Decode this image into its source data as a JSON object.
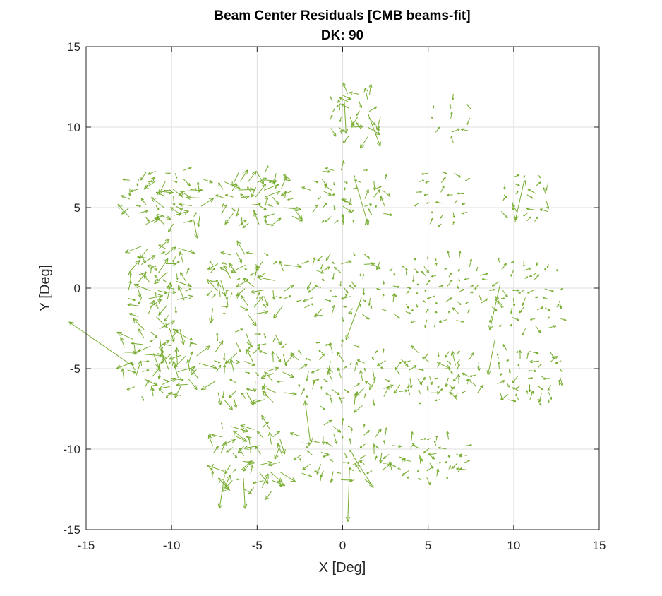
{
  "chart_data": {
    "type": "quiver",
    "title": "Beam Center Residuals [CMB beams-fit]",
    "subtitle": "DK: 90",
    "xlabel": "X [Deg]",
    "ylabel": "Y [Deg]",
    "xlim": [
      -15,
      15
    ],
    "ylim": [
      -15,
      15
    ],
    "xticks": [
      -15,
      -10,
      -5,
      0,
      5,
      10,
      15
    ],
    "yticks": [
      -15,
      -10,
      -5,
      0,
      5,
      10,
      15
    ],
    "grid": true,
    "arrow_color": "#77ac30",
    "tiles": [
      {
        "center": [
          -10.4,
          5.6
        ],
        "half_size": [
          2.1,
          1.6
        ],
        "rows": 7,
        "cols": 9,
        "mean_length": 0.75,
        "seed": 11
      },
      {
        "center": [
          -5.0,
          5.6
        ],
        "half_size": [
          2.0,
          1.6
        ],
        "rows": 7,
        "cols": 9,
        "mean_length": 0.7,
        "seed": 12
      },
      {
        "center": [
          0.3,
          5.6
        ],
        "half_size": [
          2.1,
          1.6
        ],
        "rows": 7,
        "cols": 8,
        "mean_length": 0.45,
        "seed": 13
      },
      {
        "center": [
          5.8,
          5.6
        ],
        "half_size": [
          1.4,
          1.6
        ],
        "rows": 6,
        "cols": 5,
        "mean_length": 0.35,
        "seed": 14
      },
      {
        "center": [
          10.7,
          5.6
        ],
        "half_size": [
          1.3,
          1.4
        ],
        "rows": 6,
        "cols": 5,
        "mean_length": 0.4,
        "seed": 15
      },
      {
        "center": [
          0.7,
          10.8
        ],
        "half_size": [
          1.4,
          1.3
        ],
        "rows": 6,
        "cols": 6,
        "mean_length": 0.6,
        "seed": 16
      },
      {
        "center": [
          6.4,
          10.5
        ],
        "half_size": [
          1.0,
          1.5
        ],
        "rows": 5,
        "cols": 3,
        "mean_length": 0.4,
        "seed": 17
      },
      {
        "center": [
          -10.8,
          0.4
        ],
        "half_size": [
          1.6,
          2.1
        ],
        "rows": 9,
        "cols": 7,
        "mean_length": 0.75,
        "seed": 21
      },
      {
        "center": [
          -5.6,
          0.2
        ],
        "half_size": [
          2.1,
          1.9
        ],
        "rows": 8,
        "cols": 9,
        "mean_length": 0.7,
        "seed": 22
      },
      {
        "center": [
          0.0,
          0.2
        ],
        "half_size": [
          2.3,
          1.9
        ],
        "rows": 8,
        "cols": 9,
        "mean_length": 0.45,
        "seed": 23
      },
      {
        "center": [
          5.5,
          -0.1
        ],
        "half_size": [
          2.5,
          1.9
        ],
        "rows": 8,
        "cols": 9,
        "mean_length": 0.35,
        "seed": 24
      },
      {
        "center": [
          10.6,
          -0.4
        ],
        "half_size": [
          2.0,
          2.0
        ],
        "rows": 8,
        "cols": 7,
        "mean_length": 0.4,
        "seed": 25
      },
      {
        "center": [
          -10.6,
          -4.6
        ],
        "half_size": [
          2.1,
          2.0
        ],
        "rows": 9,
        "cols": 9,
        "mean_length": 0.75,
        "seed": 31
      },
      {
        "center": [
          -5.4,
          -4.9
        ],
        "half_size": [
          2.0,
          2.1
        ],
        "rows": 8,
        "cols": 8,
        "mean_length": 0.7,
        "seed": 32
      },
      {
        "center": [
          0.0,
          -5.4
        ],
        "half_size": [
          2.5,
          1.9
        ],
        "rows": 8,
        "cols": 9,
        "mean_length": 0.5,
        "seed": 33
      },
      {
        "center": [
          5.6,
          -5.5
        ],
        "half_size": [
          2.3,
          1.5
        ],
        "rows": 7,
        "cols": 9,
        "mean_length": 0.45,
        "seed": 34
      },
      {
        "center": [
          10.9,
          -5.5
        ],
        "half_size": [
          1.8,
          1.5
        ],
        "rows": 7,
        "cols": 7,
        "mean_length": 0.4,
        "seed": 35
      },
      {
        "center": [
          -5.6,
          -10.6
        ],
        "half_size": [
          2.0,
          1.9
        ],
        "rows": 8,
        "cols": 8,
        "mean_length": 0.75,
        "seed": 41
      },
      {
        "center": [
          0.0,
          -10.3
        ],
        "half_size": [
          2.4,
          1.7
        ],
        "rows": 7,
        "cols": 9,
        "mean_length": 0.5,
        "seed": 42
      },
      {
        "center": [
          5.0,
          -10.6
        ],
        "half_size": [
          2.2,
          1.2
        ],
        "rows": 6,
        "cols": 9,
        "mean_length": 0.4,
        "seed": 43
      }
    ],
    "long_arrows": [
      {
        "x": -12.6,
        "y": -4.6,
        "u": -3.4,
        "v": 2.5
      },
      {
        "x": 0.4,
        "y": -11.2,
        "u": -0.1,
        "v": -3.3
      },
      {
        "x": 0.6,
        "y": -10.4,
        "u": 1.2,
        "v": -2.0
      },
      {
        "x": -6.9,
        "y": -11.6,
        "u": -0.3,
        "v": -2.1
      },
      {
        "x": -5.8,
        "y": -11.8,
        "u": 0.1,
        "v": -1.9
      },
      {
        "x": 1.1,
        "y": -0.6,
        "u": -0.9,
        "v": -2.6
      },
      {
        "x": 9.2,
        "y": 0.2,
        "u": -0.6,
        "v": -2.8
      },
      {
        "x": 8.9,
        "y": -3.2,
        "u": -0.4,
        "v": -2.2
      },
      {
        "x": 0.7,
        "y": 6.8,
        "u": 0.8,
        "v": -2.9
      },
      {
        "x": 10.6,
        "y": 6.6,
        "u": -0.5,
        "v": -2.4
      },
      {
        "x": 1.5,
        "y": 10.8,
        "u": 0.7,
        "v": -2.0
      },
      {
        "x": -1.9,
        "y": -9.5,
        "u": -0.3,
        "v": 2.5
      },
      {
        "x": 5.5,
        "y": -4.6,
        "u": 0.8,
        "v": -0.4
      },
      {
        "x": -8.7,
        "y": 4.2,
        "u": 0.2,
        "v": -1.1
      },
      {
        "x": 0.1,
        "y": 11.6,
        "u": 0.1,
        "v": -2.0
      },
      {
        "x": 6.6,
        "y": -4.8,
        "u": -0.2,
        "v": 0.9
      },
      {
        "x": 9.4,
        "y": -1.2,
        "u": -0.5,
        "v": 0.7
      }
    ]
  }
}
